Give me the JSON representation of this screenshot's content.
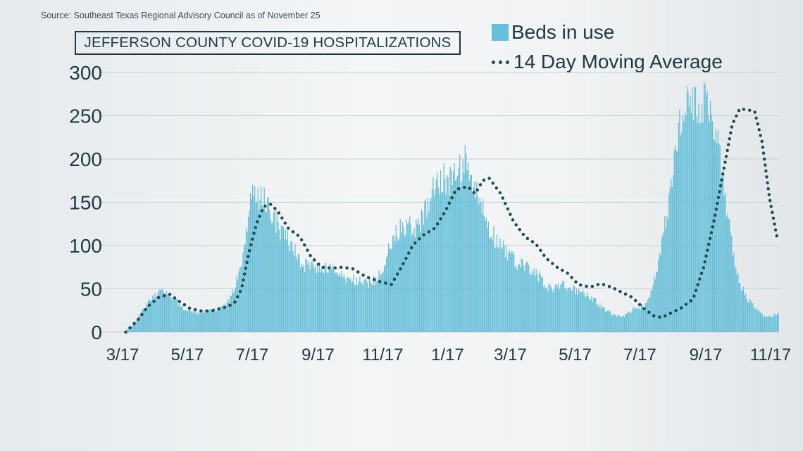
{
  "source": "Source: Southeast Texas Regional Advisory Council as of November 25",
  "chart_data": {
    "type": "bar",
    "title": "JEFFERSON COUNTY COVID-19 HOSPITALIZATIONS",
    "legend": [
      {
        "name": "Beds in use",
        "style": "bar",
        "color": "#66bfd8"
      },
      {
        "name": "14 Day Moving Average",
        "style": "dotted-line",
        "color": "#1f4a52"
      }
    ],
    "legend_placement": "top-right",
    "xlabel": "",
    "ylabel": "",
    "ylim": [
      0,
      300
    ],
    "yticks": [
      0,
      50,
      100,
      150,
      200,
      250,
      300
    ],
    "xticks": [
      "3/17",
      "5/17",
      "7/17",
      "9/17",
      "11/17",
      "1/17",
      "3/17",
      "5/17",
      "7/17",
      "9/17",
      "11/17"
    ],
    "grid": "horizontal",
    "x_start": "2020-03-17",
    "x_end": "2021-11-25",
    "series": [
      {
        "name": "Beds in use",
        "style": "bar",
        "points": [
          [
            "2020-03-17",
            0
          ],
          [
            "2020-03-24",
            5
          ],
          [
            "2020-03-31",
            15
          ],
          [
            "2020-04-07",
            30
          ],
          [
            "2020-04-14",
            42
          ],
          [
            "2020-04-21",
            48
          ],
          [
            "2020-04-28",
            45
          ],
          [
            "2020-05-05",
            38
          ],
          [
            "2020-05-12",
            28
          ],
          [
            "2020-05-19",
            24
          ],
          [
            "2020-05-26",
            22
          ],
          [
            "2020-06-02",
            24
          ],
          [
            "2020-06-09",
            26
          ],
          [
            "2020-06-16",
            28
          ],
          [
            "2020-06-23",
            32
          ],
          [
            "2020-06-30",
            50
          ],
          [
            "2020-07-07",
            85
          ],
          [
            "2020-07-14",
            140
          ],
          [
            "2020-07-17",
            172
          ],
          [
            "2020-07-21",
            150
          ],
          [
            "2020-07-28",
            155
          ],
          [
            "2020-08-04",
            140
          ],
          [
            "2020-08-11",
            120
          ],
          [
            "2020-08-18",
            108
          ],
          [
            "2020-08-25",
            95
          ],
          [
            "2020-09-01",
            80
          ],
          [
            "2020-09-08",
            75
          ],
          [
            "2020-09-15",
            75
          ],
          [
            "2020-09-22",
            74
          ],
          [
            "2020-09-29",
            72
          ],
          [
            "2020-10-06",
            68
          ],
          [
            "2020-10-13",
            62
          ],
          [
            "2020-10-20",
            60
          ],
          [
            "2020-10-27",
            58
          ],
          [
            "2020-11-03",
            57
          ],
          [
            "2020-11-10",
            60
          ],
          [
            "2020-11-17",
            75
          ],
          [
            "2020-11-24",
            100
          ],
          [
            "2020-12-01",
            118
          ],
          [
            "2020-12-08",
            125
          ],
          [
            "2020-12-15",
            122
          ],
          [
            "2020-12-22",
            125
          ],
          [
            "2020-12-29",
            145
          ],
          [
            "2021-01-05",
            175
          ],
          [
            "2021-01-12",
            180
          ],
          [
            "2021-01-19",
            175
          ],
          [
            "2021-01-26",
            185
          ],
          [
            "2021-02-02",
            195
          ],
          [
            "2021-02-09",
            170
          ],
          [
            "2021-02-16",
            150
          ],
          [
            "2021-02-23",
            125
          ],
          [
            "2021-03-02",
            110
          ],
          [
            "2021-03-09",
            100
          ],
          [
            "2021-03-16",
            88
          ],
          [
            "2021-03-23",
            80
          ],
          [
            "2021-03-30",
            75
          ],
          [
            "2021-04-06",
            72
          ],
          [
            "2021-04-13",
            65
          ],
          [
            "2021-04-20",
            52
          ],
          [
            "2021-04-27",
            50
          ],
          [
            "2021-05-04",
            55
          ],
          [
            "2021-05-11",
            52
          ],
          [
            "2021-05-18",
            48
          ],
          [
            "2021-05-25",
            45
          ],
          [
            "2021-06-01",
            40
          ],
          [
            "2021-06-08",
            32
          ],
          [
            "2021-06-15",
            25
          ],
          [
            "2021-06-22",
            20
          ],
          [
            "2021-06-29",
            18
          ],
          [
            "2021-07-06",
            22
          ],
          [
            "2021-07-13",
            28
          ],
          [
            "2021-07-20",
            30
          ],
          [
            "2021-07-27",
            45
          ],
          [
            "2021-08-03",
            80
          ],
          [
            "2021-08-10",
            130
          ],
          [
            "2021-08-17",
            185
          ],
          [
            "2021-08-24",
            240
          ],
          [
            "2021-08-31",
            270
          ],
          [
            "2021-09-07",
            265
          ],
          [
            "2021-09-14",
            262
          ],
          [
            "2021-09-21",
            255
          ],
          [
            "2021-09-28",
            215
          ],
          [
            "2021-10-05",
            150
          ],
          [
            "2021-10-12",
            95
          ],
          [
            "2021-10-19",
            55
          ],
          [
            "2021-10-26",
            38
          ],
          [
            "2021-11-02",
            28
          ],
          [
            "2021-11-09",
            20
          ],
          [
            "2021-11-16",
            18
          ],
          [
            "2021-11-23",
            22
          ],
          [
            "2021-11-25",
            24
          ]
        ]
      },
      {
        "name": "14 Day Moving Average",
        "style": "dotted-line",
        "points": [
          [
            "2020-03-20",
            0
          ],
          [
            "2020-04-01",
            15
          ],
          [
            "2020-04-10",
            30
          ],
          [
            "2020-04-20",
            40
          ],
          [
            "2020-04-30",
            44
          ],
          [
            "2020-05-10",
            35
          ],
          [
            "2020-05-20",
            27
          ],
          [
            "2020-06-01",
            24
          ],
          [
            "2020-06-10",
            25
          ],
          [
            "2020-06-20",
            28
          ],
          [
            "2020-06-30",
            33
          ],
          [
            "2020-07-07",
            50
          ],
          [
            "2020-07-14",
            92
          ],
          [
            "2020-07-21",
            125
          ],
          [
            "2020-07-28",
            145
          ],
          [
            "2020-08-03",
            148
          ],
          [
            "2020-08-10",
            140
          ],
          [
            "2020-08-20",
            120
          ],
          [
            "2020-08-31",
            110
          ],
          [
            "2020-09-10",
            88
          ],
          [
            "2020-09-20",
            75
          ],
          [
            "2020-10-01",
            74
          ],
          [
            "2020-10-10",
            75
          ],
          [
            "2020-10-20",
            73
          ],
          [
            "2020-11-01",
            64
          ],
          [
            "2020-11-15",
            58
          ],
          [
            "2020-11-25",
            55
          ],
          [
            "2020-12-05",
            76
          ],
          [
            "2020-12-15",
            100
          ],
          [
            "2020-12-25",
            112
          ],
          [
            "2021-01-05",
            120
          ],
          [
            "2021-01-15",
            140
          ],
          [
            "2021-01-25",
            165
          ],
          [
            "2021-02-05",
            168
          ],
          [
            "2021-02-12",
            160
          ],
          [
            "2021-02-19",
            175
          ],
          [
            "2021-02-25",
            178
          ],
          [
            "2021-03-08",
            160
          ],
          [
            "2021-03-20",
            128
          ],
          [
            "2021-03-31",
            110
          ],
          [
            "2021-04-10",
            102
          ],
          [
            "2021-04-20",
            85
          ],
          [
            "2021-04-30",
            75
          ],
          [
            "2021-05-10",
            68
          ],
          [
            "2021-05-20",
            55
          ],
          [
            "2021-05-31",
            52
          ],
          [
            "2021-06-10",
            56
          ],
          [
            "2021-06-20",
            52
          ],
          [
            "2021-06-30",
            46
          ],
          [
            "2021-07-10",
            40
          ],
          [
            "2021-07-20",
            28
          ],
          [
            "2021-07-31",
            18
          ],
          [
            "2021-08-07",
            17
          ],
          [
            "2021-08-15",
            22
          ],
          [
            "2021-08-25",
            28
          ],
          [
            "2021-09-05",
            38
          ],
          [
            "2021-09-15",
            75
          ],
          [
            "2021-09-25",
            130
          ],
          [
            "2021-10-05",
            195
          ],
          [
            "2021-10-12",
            240
          ],
          [
            "2021-10-19",
            258
          ],
          [
            "2021-10-26",
            257
          ],
          [
            "2021-11-02",
            255
          ],
          [
            "2021-11-09",
            220
          ],
          [
            "2021-11-16",
            155
          ],
          [
            "2021-11-23",
            110
          ]
        ]
      }
    ]
  }
}
